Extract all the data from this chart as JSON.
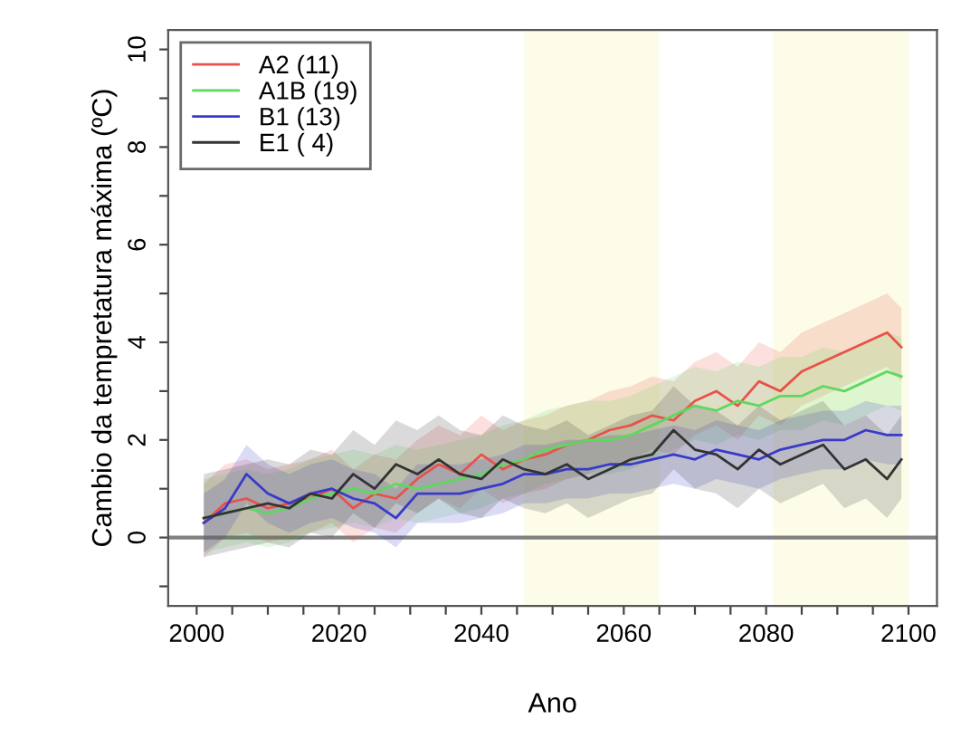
{
  "chart_data": {
    "type": "line",
    "xlabel": "Ano",
    "ylabel": "Cambio da tempretatura máxima (ºC)",
    "xlim": [
      1996,
      2104
    ],
    "ylim": [
      -1.4,
      10.4
    ],
    "xticks": [
      2000,
      {
        "value": 2005,
        "label": null
      },
      {
        "value": 2010,
        "label": null
      },
      {
        "value": 2015,
        "label": null
      },
      2020,
      {
        "value": 2025,
        "label": null
      },
      {
        "value": 2030,
        "label": null
      },
      {
        "value": 2035,
        "label": null
      },
      2040,
      {
        "value": 2045,
        "label": null
      },
      {
        "value": 2050,
        "label": null
      },
      {
        "value": 2055,
        "label": null
      },
      2060,
      {
        "value": 2065,
        "label": null
      },
      {
        "value": 2070,
        "label": null
      },
      {
        "value": 2075,
        "label": null
      },
      2080,
      {
        "value": 2085,
        "label": null
      },
      {
        "value": 2090,
        "label": null
      },
      {
        "value": 2095,
        "label": null
      },
      2100
    ],
    "yticks": [
      {
        "value": -1,
        "label": null
      },
      0,
      {
        "value": 1,
        "label": null
      },
      2,
      {
        "value": 3,
        "label": null
      },
      4,
      {
        "value": 5,
        "label": null
      },
      6,
      {
        "value": 7,
        "label": null
      },
      8,
      {
        "value": 9,
        "label": null
      },
      10
    ],
    "grid": false,
    "legend": "top left",
    "marker": "none",
    "line_style": "solid",
    "ref_lines": [
      {
        "axis": "y",
        "value": 0,
        "color": "#808080"
      }
    ],
    "bands": [
      {
        "axis": "x",
        "from": 2046,
        "to": 2065,
        "color": "#fcfce8"
      },
      {
        "axis": "x",
        "from": 2081,
        "to": 2100,
        "color": "#fcfce8"
      }
    ],
    "x": [
      2001,
      2004,
      2007,
      2010,
      2013,
      2016,
      2019,
      2022,
      2025,
      2028,
      2031,
      2034,
      2037,
      2040,
      2043,
      2046,
      2049,
      2052,
      2055,
      2058,
      2061,
      2064,
      2067,
      2070,
      2073,
      2076,
      2079,
      2082,
      2085,
      2088,
      2091,
      2094,
      2097,
      2099
    ],
    "series": [
      {
        "name": "A2 (11)",
        "color": "#e8524a",
        "values": [
          0.3,
          0.7,
          0.8,
          0.6,
          0.7,
          0.8,
          1.0,
          0.6,
          0.9,
          0.8,
          1.2,
          1.5,
          1.3,
          1.7,
          1.4,
          1.6,
          1.7,
          1.9,
          2.0,
          2.2,
          2.3,
          2.5,
          2.4,
          2.8,
          3.0,
          2.7,
          3.2,
          3.0,
          3.4,
          3.6,
          3.8,
          4.0,
          4.2,
          3.9
        ],
        "lower": [
          -0.4,
          0.0,
          0.1,
          -0.1,
          0.0,
          0.1,
          0.3,
          -0.1,
          0.2,
          0.1,
          0.5,
          0.8,
          0.6,
          1.0,
          0.7,
          0.9,
          1.0,
          1.2,
          1.3,
          1.5,
          1.6,
          1.8,
          1.7,
          2.1,
          2.3,
          2.0,
          2.5,
          2.3,
          2.7,
          2.9,
          3.1,
          3.3,
          3.5,
          3.2
        ],
        "upper": [
          1.1,
          1.5,
          1.6,
          1.4,
          1.5,
          1.6,
          1.8,
          1.4,
          1.7,
          1.6,
          2.0,
          2.3,
          2.1,
          2.5,
          2.2,
          2.4,
          2.5,
          2.7,
          2.8,
          3.0,
          3.1,
          3.3,
          3.2,
          3.6,
          3.8,
          3.5,
          4.0,
          3.8,
          4.2,
          4.4,
          4.6,
          4.8,
          5.0,
          4.7
        ]
      },
      {
        "name": "A1B (19)",
        "color": "#5ed85e",
        "values": [
          0.4,
          0.5,
          0.6,
          0.5,
          0.6,
          0.8,
          0.9,
          1.0,
          0.9,
          1.1,
          1.0,
          1.1,
          1.2,
          1.3,
          1.5,
          1.6,
          1.8,
          1.9,
          2.0,
          2.0,
          2.1,
          2.3,
          2.5,
          2.7,
          2.6,
          2.8,
          2.7,
          2.9,
          2.9,
          3.1,
          3.0,
          3.2,
          3.4,
          3.3
        ],
        "lower": [
          -0.3,
          -0.2,
          -0.1,
          -0.2,
          -0.1,
          0.1,
          0.2,
          0.3,
          0.2,
          0.4,
          0.3,
          0.4,
          0.5,
          0.6,
          0.8,
          0.9,
          1.1,
          1.2,
          1.3,
          1.3,
          1.4,
          1.6,
          1.8,
          2.0,
          1.9,
          2.1,
          2.0,
          2.2,
          2.2,
          2.4,
          2.3,
          2.5,
          2.7,
          2.6
        ],
        "upper": [
          1.2,
          1.3,
          1.4,
          1.3,
          1.4,
          1.6,
          1.7,
          1.8,
          1.7,
          1.9,
          1.8,
          1.9,
          2.0,
          2.1,
          2.3,
          2.4,
          2.6,
          2.7,
          2.8,
          2.8,
          2.9,
          3.1,
          3.3,
          3.5,
          3.4,
          3.6,
          3.5,
          3.7,
          3.7,
          3.9,
          3.8,
          4.0,
          4.2,
          4.1
        ]
      },
      {
        "name": "B1 (13)",
        "color": "#3a3ac8",
        "values": [
          0.3,
          0.6,
          1.3,
          0.9,
          0.7,
          0.9,
          1.0,
          0.8,
          0.7,
          0.4,
          0.9,
          0.9,
          0.9,
          1.0,
          1.1,
          1.3,
          1.3,
          1.4,
          1.4,
          1.5,
          1.5,
          1.6,
          1.7,
          1.6,
          1.8,
          1.7,
          1.6,
          1.8,
          1.9,
          2.0,
          2.0,
          2.2,
          2.1,
          2.1
        ],
        "lower": [
          -0.3,
          0.0,
          0.7,
          0.3,
          0.1,
          0.3,
          0.4,
          0.2,
          0.1,
          -0.2,
          0.3,
          0.3,
          0.3,
          0.4,
          0.5,
          0.7,
          0.7,
          0.8,
          0.8,
          0.9,
          0.9,
          1.0,
          1.1,
          1.0,
          1.2,
          1.1,
          1.0,
          1.2,
          1.3,
          1.4,
          1.4,
          1.6,
          1.5,
          1.5
        ],
        "upper": [
          0.9,
          1.2,
          1.9,
          1.5,
          1.3,
          1.5,
          1.6,
          1.4,
          1.3,
          1.0,
          1.5,
          1.5,
          1.5,
          1.6,
          1.7,
          1.9,
          1.9,
          2.0,
          2.0,
          2.1,
          2.1,
          2.2,
          2.3,
          2.2,
          2.4,
          2.3,
          2.2,
          2.4,
          2.5,
          2.6,
          2.6,
          2.8,
          2.7,
          2.7
        ]
      },
      {
        "name": "E1 ( 4)",
        "color": "#333333",
        "values": [
          0.4,
          0.5,
          0.6,
          0.7,
          0.6,
          0.9,
          0.8,
          1.3,
          1.0,
          1.5,
          1.3,
          1.6,
          1.3,
          1.2,
          1.6,
          1.4,
          1.3,
          1.5,
          1.2,
          1.4,
          1.6,
          1.7,
          2.2,
          1.8,
          1.7,
          1.4,
          1.8,
          1.5,
          1.7,
          1.9,
          1.4,
          1.6,
          1.2,
          1.6
        ],
        "lower": [
          -0.4,
          -0.3,
          -0.2,
          -0.1,
          -0.2,
          0.1,
          0.0,
          0.5,
          0.2,
          0.7,
          0.5,
          0.8,
          0.5,
          0.4,
          0.8,
          0.6,
          0.5,
          0.7,
          0.4,
          0.6,
          0.8,
          0.9,
          1.4,
          1.0,
          0.9,
          0.6,
          1.0,
          0.7,
          0.9,
          1.1,
          0.6,
          0.8,
          0.4,
          0.8
        ],
        "upper": [
          1.3,
          1.4,
          1.5,
          1.6,
          1.5,
          1.8,
          1.7,
          2.2,
          1.9,
          2.4,
          2.2,
          2.5,
          2.2,
          2.1,
          2.5,
          2.3,
          2.2,
          2.4,
          2.1,
          2.3,
          2.5,
          2.6,
          3.1,
          2.7,
          2.6,
          2.3,
          2.7,
          2.4,
          2.6,
          2.8,
          2.3,
          2.5,
          2.1,
          2.5
        ]
      }
    ]
  }
}
